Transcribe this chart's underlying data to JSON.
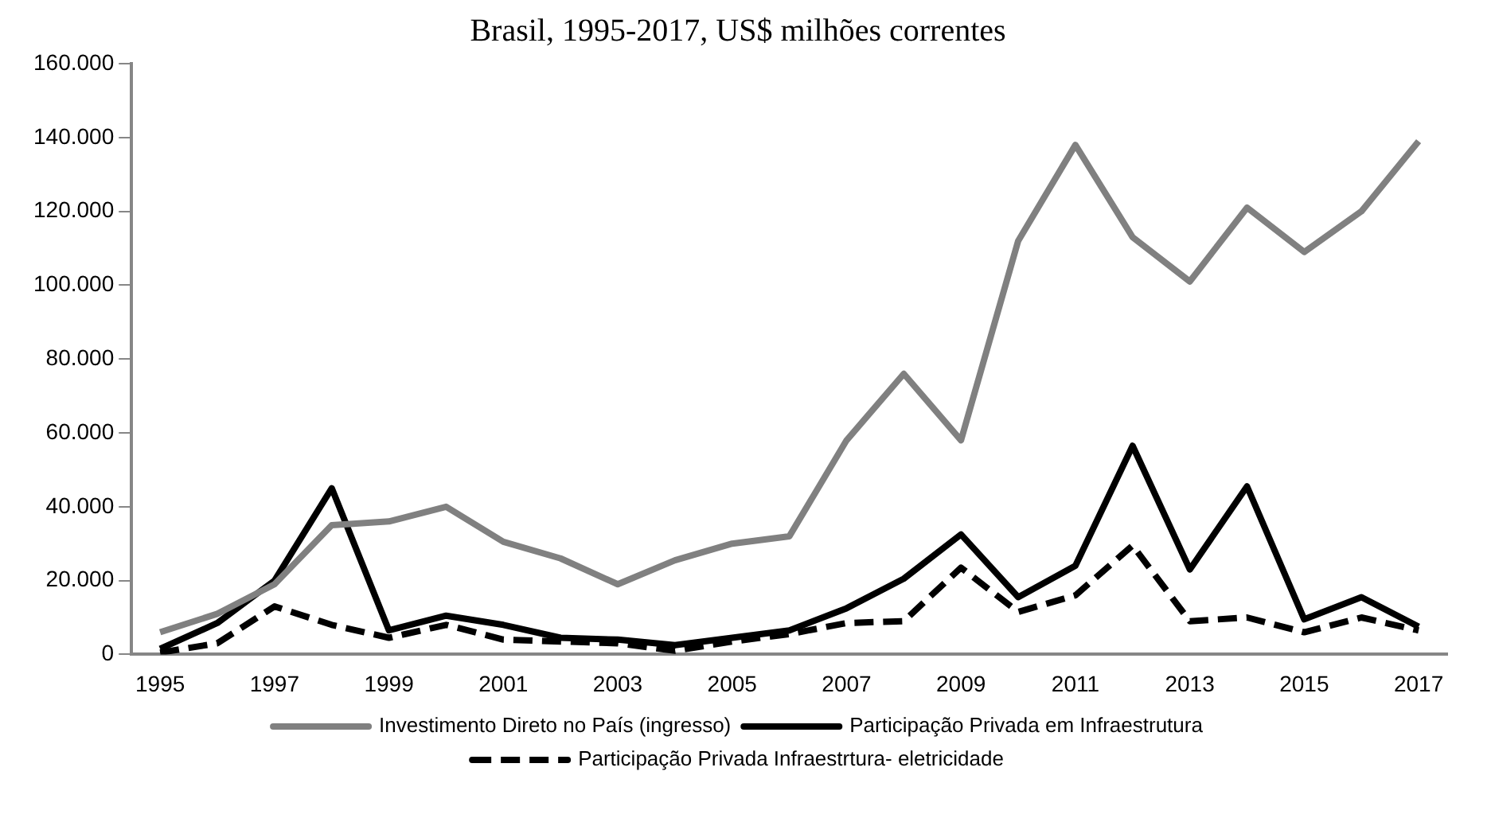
{
  "chart_data": {
    "type": "line",
    "title": "Brasil, 1995-2017, US$ milhões correntes",
    "categories": [
      "1995",
      null,
      "1997",
      null,
      "1999",
      null,
      "2001",
      null,
      "2003",
      null,
      "2005",
      null,
      "2007",
      null,
      "2009",
      null,
      "2011",
      null,
      "2013",
      null,
      "2015",
      null,
      "2017"
    ],
    "series": [
      {
        "name": "Investimento Direto no País (ingresso)",
        "color": "#808080",
        "line_style": "solid",
        "values": [
          6000,
          11000,
          19000,
          35000,
          36000,
          40000,
          30500,
          26000,
          19000,
          25500,
          30000,
          32000,
          58000,
          76000,
          58000,
          112000,
          138000,
          113000,
          101000,
          121000,
          109000,
          120000,
          139000
        ]
      },
      {
        "name": "Participação Privada em Infraestrutura",
        "color": "#000000",
        "line_style": "solid",
        "values": [
          1500,
          8500,
          20000,
          45000,
          6500,
          10500,
          8000,
          4500,
          4000,
          2500,
          4500,
          6500,
          12500,
          20500,
          32500,
          15500,
          24000,
          56500,
          23000,
          45500,
          9500,
          15500,
          7500
        ]
      },
      {
        "name": "Participação Privada Infraestrtura- eletricidade",
        "color": "#000000",
        "line_style": "dashed",
        "values": [
          500,
          3000,
          13000,
          8000,
          4500,
          8000,
          4000,
          3500,
          3000,
          1000,
          3500,
          5500,
          8500,
          9000,
          23500,
          11500,
          16000,
          29500,
          9000,
          10000,
          6000,
          10000,
          6500
        ]
      }
    ],
    "ylim": [
      0,
      160000
    ],
    "yticks": [
      0,
      {
        "value": 20000,
        "label": "20.000"
      },
      {
        "value": 40000,
        "label": "40.000"
      },
      {
        "value": 60000,
        "label": "60.000"
      },
      {
        "value": 80000,
        "label": "80.000"
      },
      {
        "value": 100000,
        "label": "100.000"
      },
      {
        "value": 120000,
        "label": "120.000"
      },
      {
        "value": 140000,
        "label": "140.000"
      },
      {
        "value": 160000,
        "label": "160.000"
      }
    ],
    "grid": false,
    "legend": "bottom",
    "marker": "none"
  }
}
